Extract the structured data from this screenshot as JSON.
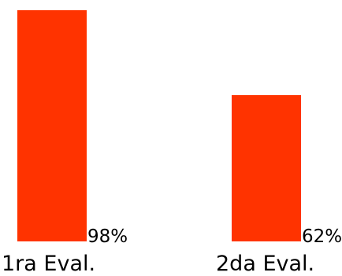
{
  "chart_data": {
    "type": "bar",
    "categories": [
      "1ra Eval.",
      "2da Eval."
    ],
    "values": [
      98,
      62
    ],
    "data_labels": [
      "98%",
      "62%"
    ],
    "ylim": [
      0,
      100
    ],
    "unit": "%",
    "grid": false,
    "legend": "none",
    "colors": {
      "bar": "#ff3300",
      "text": "#000000",
      "background": "#ffffff"
    }
  }
}
